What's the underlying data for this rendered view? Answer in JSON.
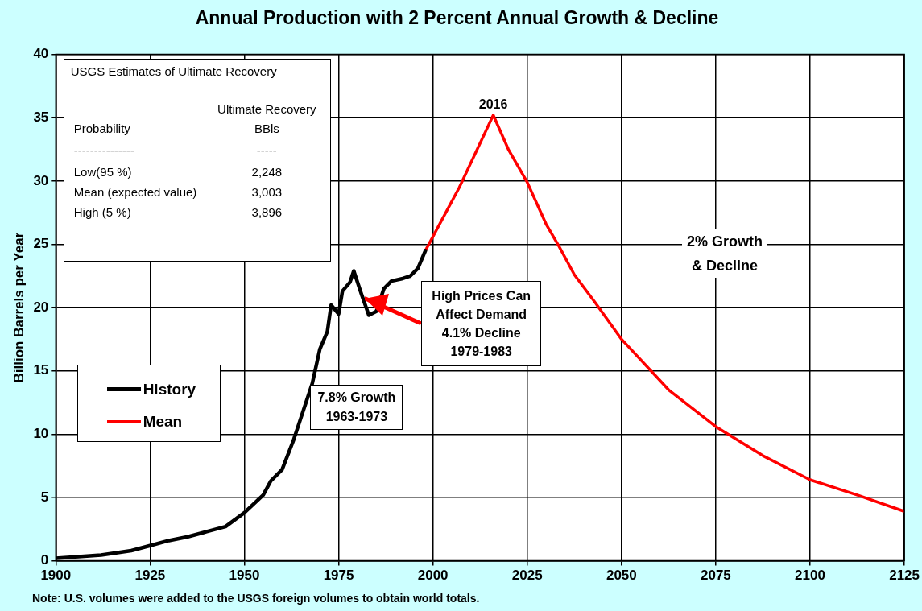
{
  "chart_data": {
    "type": "line",
    "title": "Annual Production with 2 Percent Annual Growth & Decline",
    "ylabel": "Billion Barrels per Year",
    "xlim": [
      1900,
      2125
    ],
    "xticks": [
      1900,
      1925,
      1950,
      1975,
      2000,
      2025,
      2050,
      2075,
      2100,
      2125
    ],
    "ylim": [
      0,
      40
    ],
    "yticks": [
      0,
      5,
      10,
      15,
      20,
      25,
      30,
      35,
      40
    ],
    "grid": true,
    "legend": "left",
    "series": [
      {
        "name": "History",
        "color": "#000000",
        "x": [
          1900,
          1912,
          1920,
          1925,
          1930,
          1935,
          1940,
          1945,
          1950,
          1955,
          1957,
          1960,
          1963,
          1965,
          1968,
          1970,
          1972,
          1973,
          1975,
          1976,
          1978,
          1979,
          1981,
          1983,
          1985,
          1987,
          1989,
          1992,
          1994,
          1996,
          1998
        ],
        "values": [
          0.2,
          0.45,
          0.8,
          1.2,
          1.6,
          1.9,
          2.3,
          2.7,
          3.8,
          5.2,
          6.3,
          7.2,
          9.5,
          11.3,
          14,
          16.7,
          18.1,
          20.2,
          19.5,
          21.3,
          22,
          22.9,
          21.1,
          19.4,
          19.7,
          21.5,
          22.1,
          22.3,
          22.5,
          23.1,
          24.5
        ]
      },
      {
        "name": "Mean",
        "color": "#ff0000",
        "x": [
          1998,
          2007,
          2016,
          2020,
          2025,
          2030,
          2033.5,
          2037.5,
          2043,
          2050,
          2062.5,
          2075,
          2087.5,
          2100,
          2112.5,
          2125
        ],
        "values": [
          24.5,
          29.5,
          35.2,
          32.5,
          29.9,
          26.6,
          24.8,
          22.6,
          20.4,
          17.5,
          13.5,
          10.6,
          8.3,
          6.4,
          5.2,
          3.9
        ]
      }
    ],
    "annotations": [
      {
        "text": "2016",
        "x": 2016,
        "y": 35.2
      },
      "USGS Estimates of Ultimate Recovery",
      "Ultimate Recovery",
      "Probability",
      "BBls",
      "---------------",
      "-----",
      "Low(95 %)",
      "2,248",
      "Mean (expected value)",
      "3,003",
      "High (5 %)",
      "3,896",
      "2% Growth\n& Decline",
      {
        "text": "High Prices Can\nAffect Demand\n4.1% Decline\n1979-1983",
        "x": 1982,
        "y": 20.7
      },
      "7.8% Growth\n1963-1973",
      "Note: U.S. volumes were added to the USGS foreign volumes to obtain world totals."
    ]
  }
}
